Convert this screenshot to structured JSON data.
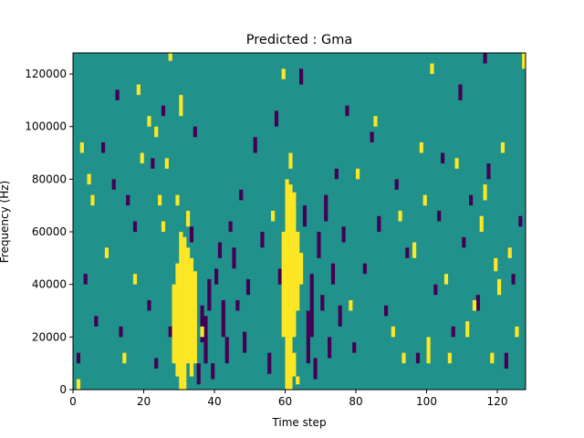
{
  "chart_data": {
    "type": "heatmap",
    "title": "Predicted : Gma",
    "xlabel": "Time step",
    "ylabel": "Frequency (Hz)",
    "xlim": [
      0,
      128
    ],
    "ylim": [
      0,
      128000
    ],
    "x_ticks": [
      0,
      20,
      40,
      60,
      80,
      100,
      120
    ],
    "y_ticks": [
      0,
      20000,
      40000,
      60000,
      80000,
      100000,
      120000
    ],
    "colors": {
      "background": "#21918c",
      "high": "#fde725",
      "low": "#440154"
    },
    "columns": 128,
    "rows": 128,
    "high_cells": [
      [
        2,
        90,
        94
      ],
      [
        4,
        78,
        82
      ],
      [
        1,
        0,
        4
      ],
      [
        5,
        70,
        74
      ],
      [
        9,
        50,
        54
      ],
      [
        14,
        10,
        14
      ],
      [
        17,
        40,
        44
      ],
      [
        18,
        112,
        116
      ],
      [
        19,
        86,
        90
      ],
      [
        21,
        100,
        104
      ],
      [
        23,
        96,
        100
      ],
      [
        24,
        70,
        74
      ],
      [
        25,
        60,
        64
      ],
      [
        26,
        84,
        88
      ],
      [
        27,
        128,
        125
      ],
      [
        28,
        10,
        40
      ],
      [
        29,
        5,
        48
      ],
      [
        29,
        70,
        74
      ],
      [
        30,
        0,
        60
      ],
      [
        31,
        0,
        58
      ],
      [
        32,
        10,
        54
      ],
      [
        33,
        5,
        50
      ],
      [
        34,
        10,
        45
      ],
      [
        32,
        62,
        68
      ],
      [
        36,
        20,
        24
      ],
      [
        30,
        104,
        112
      ],
      [
        56,
        64,
        68
      ],
      [
        59,
        20,
        60
      ],
      [
        60,
        0,
        80
      ],
      [
        61,
        0,
        78
      ],
      [
        62,
        20,
        75
      ],
      [
        63,
        30,
        60
      ],
      [
        64,
        40,
        52
      ],
      [
        63,
        2,
        5
      ],
      [
        62,
        5,
        14
      ],
      [
        61,
        84,
        90
      ],
      [
        59,
        118,
        122
      ],
      [
        78,
        30,
        34
      ],
      [
        80,
        80,
        84
      ],
      [
        85,
        100,
        104
      ],
      [
        90,
        20,
        24
      ],
      [
        92,
        64,
        68
      ],
      [
        93,
        10,
        14
      ],
      [
        96,
        50,
        56
      ],
      [
        98,
        90,
        94
      ],
      [
        99,
        70,
        74
      ],
      [
        100,
        10,
        20
      ],
      [
        101,
        120,
        124
      ],
      [
        105,
        40,
        44
      ],
      [
        106,
        10,
        14
      ],
      [
        108,
        84,
        88
      ],
      [
        111,
        20,
        26
      ],
      [
        113,
        30,
        34
      ],
      [
        115,
        60,
        66
      ],
      [
        116,
        72,
        78
      ],
      [
        118,
        10,
        14
      ],
      [
        119,
        45,
        50
      ],
      [
        121,
        90,
        94
      ],
      [
        123,
        50,
        54
      ],
      [
        125,
        20,
        24
      ],
      [
        127,
        122,
        128
      ],
      [
        120,
        36,
        42
      ]
    ],
    "low_cells": [
      [
        1,
        10,
        14
      ],
      [
        3,
        40,
        44
      ],
      [
        6,
        24,
        28
      ],
      [
        8,
        90,
        94
      ],
      [
        11,
        76,
        80
      ],
      [
        12,
        110,
        114
      ],
      [
        13,
        20,
        24
      ],
      [
        15,
        70,
        74
      ],
      [
        17,
        60,
        64
      ],
      [
        21,
        30,
        34
      ],
      [
        22,
        84,
        88
      ],
      [
        23,
        8,
        12
      ],
      [
        25,
        104,
        108
      ],
      [
        27,
        20,
        24
      ],
      [
        33,
        56,
        62
      ],
      [
        34,
        96,
        100
      ],
      [
        35,
        2,
        10
      ],
      [
        36,
        18,
        32
      ],
      [
        37,
        10,
        28
      ],
      [
        38,
        30,
        42
      ],
      [
        39,
        4,
        10
      ],
      [
        40,
        40,
        46
      ],
      [
        41,
        50,
        56
      ],
      [
        42,
        20,
        34
      ],
      [
        43,
        10,
        20
      ],
      [
        44,
        60,
        64
      ],
      [
        45,
        46,
        54
      ],
      [
        46,
        30,
        34
      ],
      [
        47,
        72,
        76
      ],
      [
        48,
        14,
        22
      ],
      [
        49,
        36,
        42
      ],
      [
        51,
        90,
        96
      ],
      [
        53,
        54,
        60
      ],
      [
        55,
        6,
        14
      ],
      [
        57,
        100,
        106
      ],
      [
        58,
        40,
        46
      ],
      [
        64,
        116,
        122
      ],
      [
        65,
        62,
        70
      ],
      [
        66,
        10,
        30
      ],
      [
        67,
        20,
        44
      ],
      [
        68,
        4,
        12
      ],
      [
        69,
        50,
        60
      ],
      [
        70,
        30,
        36
      ],
      [
        71,
        64,
        74
      ],
      [
        72,
        12,
        20
      ],
      [
        73,
        40,
        48
      ],
      [
        74,
        80,
        84
      ],
      [
        75,
        24,
        32
      ],
      [
        76,
        56,
        62
      ],
      [
        77,
        104,
        108
      ],
      [
        79,
        14,
        18
      ],
      [
        82,
        44,
        48
      ],
      [
        84,
        94,
        98
      ],
      [
        86,
        60,
        66
      ],
      [
        88,
        28,
        32
      ],
      [
        91,
        76,
        80
      ],
      [
        94,
        50,
        54
      ],
      [
        97,
        10,
        14
      ],
      [
        102,
        36,
        40
      ],
      [
        103,
        64,
        68
      ],
      [
        104,
        86,
        90
      ],
      [
        107,
        20,
        24
      ],
      [
        109,
        110,
        116
      ],
      [
        110,
        54,
        58
      ],
      [
        112,
        70,
        74
      ],
      [
        114,
        30,
        36
      ],
      [
        117,
        80,
        86
      ],
      [
        122,
        8,
        14
      ],
      [
        124,
        40,
        44
      ],
      [
        126,
        62,
        66
      ],
      [
        116,
        124,
        128
      ]
    ]
  }
}
